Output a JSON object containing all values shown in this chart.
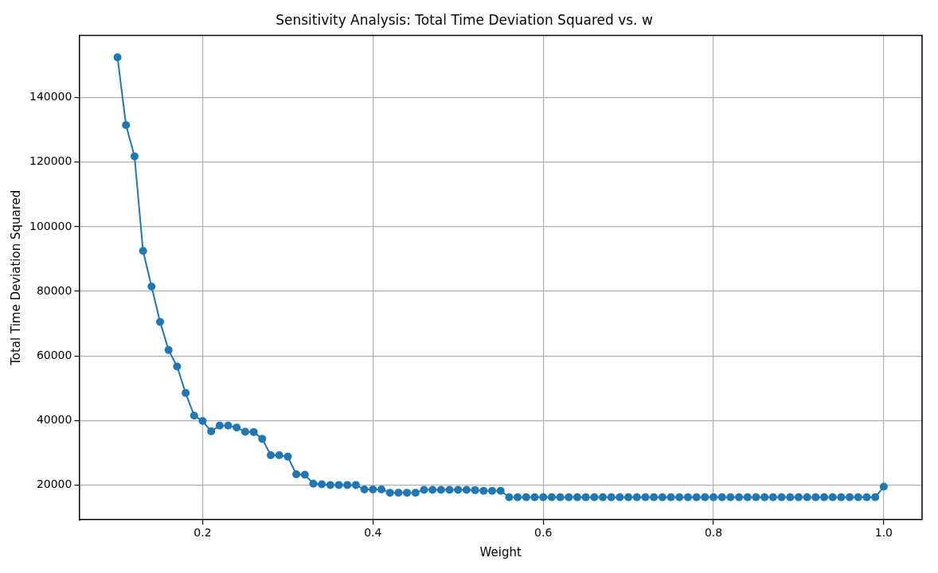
{
  "chart_data": {
    "type": "line",
    "title": "Sensitivity Analysis: Total Time Deviation Squared vs. w",
    "xlabel": "Weight",
    "ylabel": "Total Time Deviation Squared",
    "x": [
      0.1,
      0.11,
      0.12,
      0.13,
      0.14,
      0.15,
      0.16,
      0.17,
      0.18,
      0.19,
      0.2,
      0.21,
      0.22,
      0.23,
      0.24,
      0.25,
      0.26,
      0.27,
      0.28,
      0.29,
      0.3,
      0.31,
      0.32,
      0.33,
      0.34,
      0.35,
      0.36,
      0.37,
      0.38,
      0.39,
      0.4,
      0.41,
      0.42,
      0.43,
      0.44,
      0.45,
      0.46,
      0.47,
      0.48,
      0.49,
      0.5,
      0.51,
      0.52,
      0.53,
      0.54,
      0.55,
      0.56,
      0.57,
      0.58,
      0.59,
      0.6,
      0.61,
      0.62,
      0.63,
      0.64,
      0.65,
      0.66,
      0.67,
      0.68,
      0.69,
      0.7,
      0.71,
      0.72,
      0.73,
      0.74,
      0.75,
      0.76,
      0.77,
      0.78,
      0.79,
      0.8,
      0.81,
      0.82,
      0.83,
      0.84,
      0.85,
      0.86,
      0.87,
      0.88,
      0.89,
      0.9,
      0.91,
      0.92,
      0.93,
      0.94,
      0.95,
      0.96,
      0.97,
      0.98,
      0.99,
      1.0
    ],
    "series": [
      {
        "color": "#1f77b4",
        "values": [
          152500,
          131500,
          121800,
          92500,
          81500,
          70500,
          61800,
          56700,
          48500,
          41500,
          39800,
          36600,
          38400,
          38400,
          37800,
          36500,
          36400,
          34300,
          29200,
          29200,
          28800,
          23300,
          23200,
          20400,
          20200,
          20000,
          20000,
          20000,
          20000,
          18600,
          18600,
          18600,
          17600,
          17600,
          17600,
          17600,
          18500,
          18500,
          18500,
          18500,
          18500,
          18500,
          18400,
          18200,
          18200,
          18200,
          16200,
          16200,
          16200,
          16200,
          16200,
          16200,
          16200,
          16200,
          16200,
          16200,
          16200,
          16200,
          16200,
          16200,
          16200,
          16200,
          16200,
          16200,
          16200,
          16200,
          16200,
          16200,
          16200,
          16200,
          16200,
          16200,
          16200,
          16200,
          16200,
          16200,
          16200,
          16200,
          16200,
          16200,
          16200,
          16200,
          16200,
          16200,
          16200,
          16200,
          16200,
          16200,
          16200,
          16200,
          19500
        ]
      }
    ],
    "xlim": [
      0.055,
      1.045
    ],
    "xticks": [
      {
        "value": 0.2,
        "label": "0.2"
      },
      {
        "value": 0.4,
        "label": "0.4"
      },
      {
        "value": 0.6,
        "label": "0.6"
      },
      {
        "value": 0.8,
        "label": "0.8"
      },
      {
        "value": 1.0,
        "label": "1.0"
      }
    ],
    "ylim": [
      9200,
      159300
    ],
    "yticks": [
      20000,
      40000,
      60000,
      80000,
      100000,
      120000,
      140000
    ],
    "grid": true,
    "legend": false,
    "marker": "circle",
    "line_style": "solid"
  }
}
